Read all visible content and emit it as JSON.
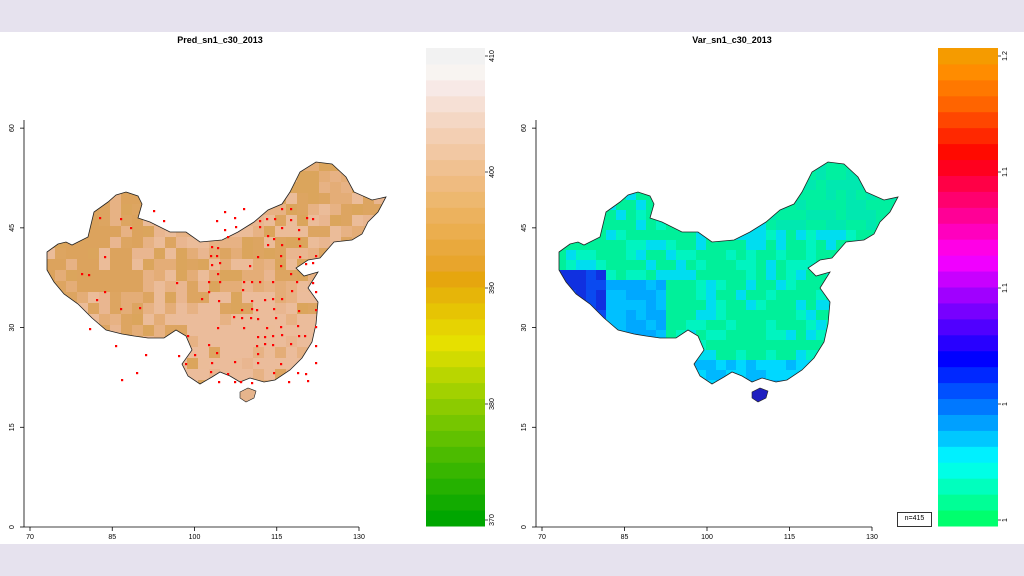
{
  "maps": [
    {
      "title": "Pred_sn1_c30_2013",
      "x_ticks": [
        "70",
        "85",
        "100",
        "115",
        "130"
      ],
      "y_ticks": [
        "0",
        "15",
        "30",
        "45",
        "60"
      ],
      "fill_color": "#e0a868",
      "colorbar": {
        "ticks": [
          "370",
          "380",
          "390",
          "400",
          "410"
        ],
        "colors": [
          "#00a600",
          "#12ab00",
          "#25b100",
          "#38b600",
          "#4cbb00",
          "#61c100",
          "#76c600",
          "#8ccb00",
          "#a2d100",
          "#b9d600",
          "#d1db00",
          "#e6e000",
          "#e6d302",
          "#e6c404",
          "#e6b509",
          "#e6a60e",
          "#e8a52c",
          "#e9a93d",
          "#ebae4e",
          "#ecb25e",
          "#edb86f",
          "#efbb80",
          "#f0c191",
          "#f2c8a3",
          "#f3cfb3",
          "#f4d7c4",
          "#f6e0d5",
          "#f7e9e6",
          "#f8f4f1",
          "#f2f2f2"
        ]
      },
      "station_color": "#ff0000"
    },
    {
      "title": "Var_sn1_c30_2013",
      "x_ticks": [
        "70",
        "85",
        "100",
        "115",
        "130"
      ],
      "y_ticks": [
        "0",
        "15",
        "30",
        "45",
        "60"
      ],
      "fill_color": "#00ee88",
      "colorbar": {
        "ticks": [
          "1",
          "1",
          "1.1",
          "1.1",
          "1.2"
        ],
        "colors": [
          "#00ff6e",
          "#00ff96",
          "#00ffbe",
          "#00ffe6",
          "#00f0ff",
          "#00c8ff",
          "#00a0ff",
          "#0078ff",
          "#0050ff",
          "#0028ff",
          "#0000ff",
          "#2800ff",
          "#5000ff",
          "#7800ff",
          "#a000ff",
          "#c800ff",
          "#f000ff",
          "#ff00e6",
          "#ff00be",
          "#ff0096",
          "#ff006e",
          "#ff0046",
          "#ff001e",
          "#ff0a00",
          "#ff2800",
          "#ff4600",
          "#ff6400",
          "#ff7800",
          "#ff8c00",
          "#f59b00"
        ]
      },
      "legend_label": "n=415"
    }
  ]
}
